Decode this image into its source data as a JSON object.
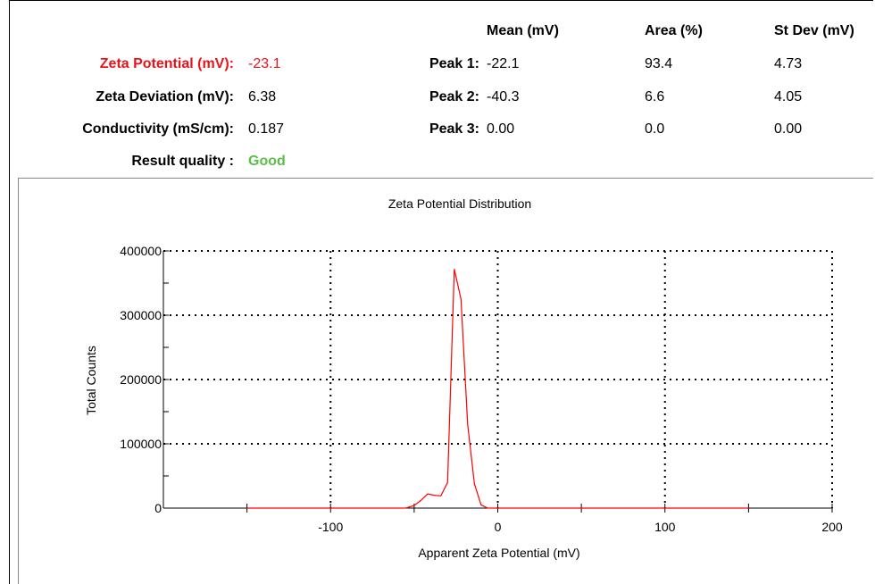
{
  "summary": {
    "zeta_potential": {
      "label": "Zeta Potential (mV):",
      "value": "-23.1"
    },
    "zeta_deviation": {
      "label": "Zeta Deviation (mV):",
      "value": "6.38"
    },
    "conductivity": {
      "label": "Conductivity (mS/cm):",
      "value": "0.187"
    },
    "result_quality": {
      "label": "Result quality :",
      "value": "Good"
    },
    "accent_color": "#e8141c",
    "good_color": "#5bbf4a"
  },
  "peaks_table": {
    "headers": [
      "Mean (mV)",
      "Area (%)",
      "St Dev (mV)"
    ],
    "rows": [
      {
        "label": "Peak 1:",
        "mean": "-22.1",
        "area": "93.4",
        "stdev": "4.73"
      },
      {
        "label": "Peak 2:",
        "mean": "-40.3",
        "area": "6.6",
        "stdev": "4.05"
      },
      {
        "label": "Peak 3:",
        "mean": "0.00",
        "area": "0.0",
        "stdev": "0.00"
      }
    ]
  },
  "chart_data": {
    "type": "line",
    "title": "Zeta Potential Distribution",
    "xlabel": "Apparent Zeta Potential (mV)",
    "ylabel": "Total Counts",
    "xlim": [
      -200,
      200
    ],
    "ylim": [
      0,
      400000
    ],
    "x_ticks": [
      -100,
      0,
      100,
      200
    ],
    "y_ticks": [
      0,
      100000,
      200000,
      300000,
      400000
    ],
    "grid": "dotted",
    "line_color": "#ff0000",
    "series": [
      {
        "x": [
          -150,
          -100,
          -55,
          -50,
          -46,
          -42,
          -38,
          -34,
          -30,
          -26,
          -22,
          -18,
          -14,
          -10,
          -6,
          0,
          50,
          100,
          150
        ],
        "y": [
          0,
          0,
          0,
          4000,
          12000,
          22000,
          20000,
          19000,
          40000,
          372000,
          325000,
          130000,
          38000,
          5000,
          0,
          0,
          0,
          0,
          0
        ]
      }
    ]
  }
}
